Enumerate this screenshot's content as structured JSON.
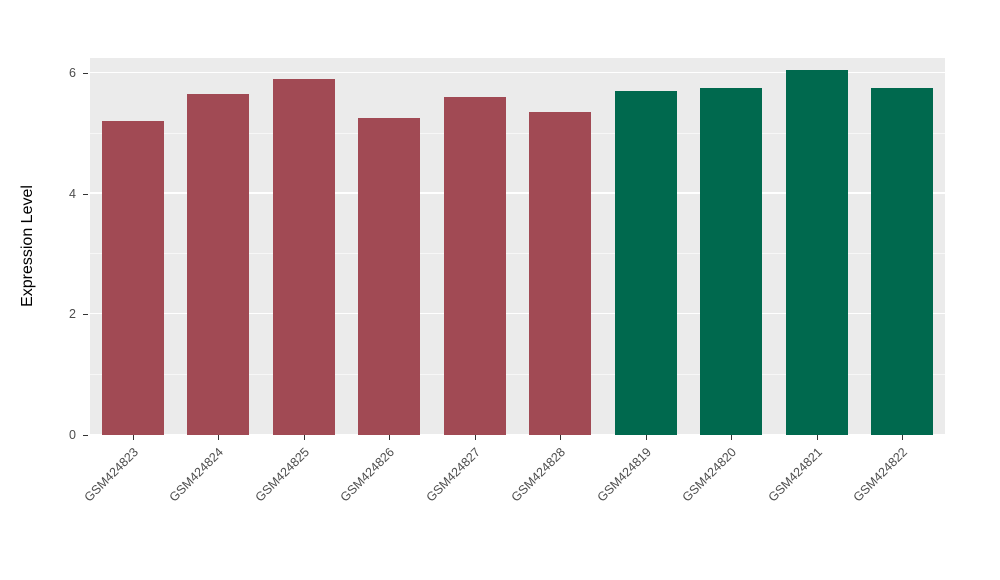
{
  "chart_data": {
    "type": "bar",
    "title": "",
    "xlabel": "",
    "ylabel": "Expression Level",
    "ylim": [
      0,
      6.25
    ],
    "yticks": [
      0,
      2,
      4,
      6
    ],
    "yticks_minor": [
      1,
      3,
      5
    ],
    "grid": true,
    "legend": "none",
    "panel_bg": "#EBEBEB",
    "grid_color": "#FFFFFF",
    "categories": [
      "GSM424823",
      "GSM424824",
      "GSM424825",
      "GSM424826",
      "GSM424827",
      "GSM424828",
      "GSM424819",
      "GSM424820",
      "GSM424821",
      "GSM424822"
    ],
    "values": [
      5.2,
      5.65,
      5.9,
      5.25,
      5.6,
      5.35,
      5.7,
      5.75,
      6.05,
      5.75
    ],
    "bar_colors": [
      "#A14A54",
      "#A14A54",
      "#A14A54",
      "#A14A54",
      "#A14A54",
      "#A14A54",
      "#00694E",
      "#00694E",
      "#00694E",
      "#00694E"
    ],
    "group_colors": {
      "first_group": "#A14A54",
      "second_group": "#00694E"
    }
  }
}
